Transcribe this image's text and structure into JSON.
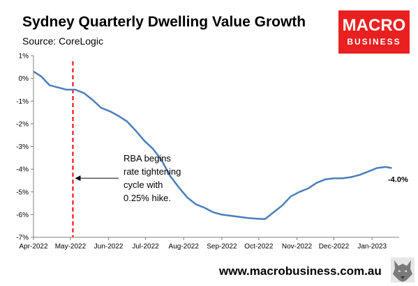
{
  "header": {
    "title": "Sydney Quarterly Dwelling Value Growth",
    "source": "Source: CoreLogic"
  },
  "logo": {
    "line1": "MACRO",
    "line2": "BUSINESS",
    "color": "#e8201f"
  },
  "footer": {
    "website": "www.macrobusiness.com.au",
    "wolf_icon": "wolf-logo-icon"
  },
  "colors": {
    "line": "#4a7ebb",
    "marker_line": "#ff0000",
    "axis": "#7f7f7f"
  },
  "chart_data": {
    "type": "line",
    "title": "Sydney Quarterly Dwelling Value Growth",
    "xlabel": "",
    "ylabel": "",
    "ylim": [
      -7,
      1
    ],
    "yticks": [
      "1%",
      "0%",
      "-1%",
      "-2%",
      "-3%",
      "-4%",
      "-5%",
      "-6%",
      "-7%"
    ],
    "xticks": [
      "Apr-2022",
      "May-2022",
      "Jun-2022",
      "Jul-2022",
      "Aug-2022",
      "Sep-2022",
      "Oct-2022",
      "Nov-2022",
      "Dec-2022",
      "Jan-2023"
    ],
    "grid": false,
    "legend": "none",
    "series": [
      {
        "x": [
          "2022-04-01",
          "2022-04-07",
          "2022-04-14",
          "2022-04-21",
          "2022-04-28",
          "2022-05-05",
          "2022-05-12",
          "2022-05-19",
          "2022-05-26",
          "2022-06-02",
          "2022-06-09",
          "2022-06-16",
          "2022-06-23",
          "2022-06-30",
          "2022-07-07",
          "2022-07-14",
          "2022-07-21",
          "2022-07-28",
          "2022-08-04",
          "2022-08-11",
          "2022-08-18",
          "2022-08-25",
          "2022-09-01",
          "2022-09-08",
          "2022-09-15",
          "2022-09-22",
          "2022-09-29",
          "2022-10-06",
          "2022-10-13",
          "2022-10-20",
          "2022-10-27",
          "2022-11-03",
          "2022-11-10",
          "2022-11-17",
          "2022-11-24",
          "2022-12-01",
          "2022-12-08",
          "2022-12-15",
          "2022-12-22",
          "2022-12-29",
          "2023-01-05",
          "2023-01-12",
          "2023-01-17"
        ],
        "values": [
          0.3,
          0.1,
          -0.3,
          -0.4,
          -0.5,
          -0.5,
          -0.65,
          -0.95,
          -1.3,
          -1.45,
          -1.65,
          -1.9,
          -2.3,
          -2.75,
          -3.1,
          -3.6,
          -4.3,
          -4.8,
          -5.25,
          -5.55,
          -5.7,
          -5.9,
          -6.0,
          -6.05,
          -6.1,
          -6.15,
          -6.18,
          -6.2,
          -5.9,
          -5.6,
          -5.2,
          -5.0,
          -4.85,
          -4.6,
          -4.45,
          -4.4,
          -4.4,
          -4.35,
          -4.25,
          -4.1,
          -3.95,
          -3.9,
          -3.95
        ]
      }
    ],
    "marker": {
      "x": "2022-05-03"
    },
    "annotation": {
      "lines": [
        "RBA begins",
        "rate tightening",
        "cycle with",
        "0.25% hike."
      ]
    },
    "end_label": "-4.0%"
  }
}
